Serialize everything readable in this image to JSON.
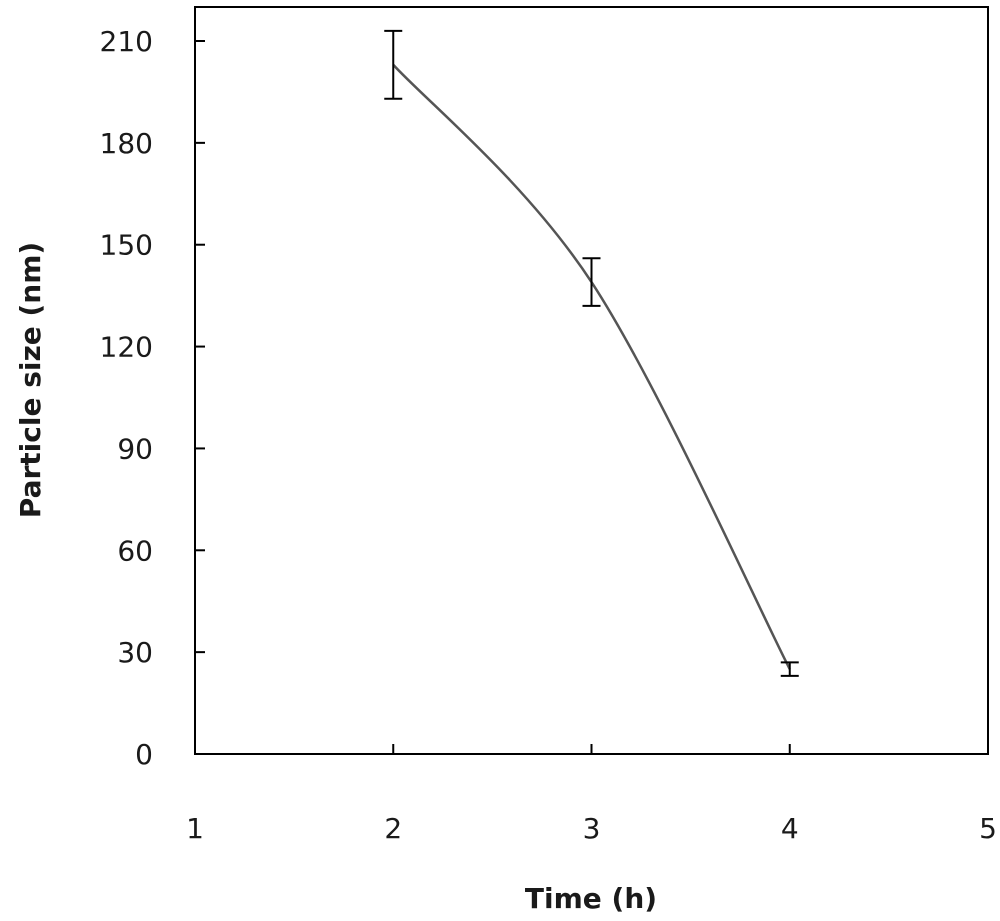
{
  "chart_data": {
    "type": "line",
    "title": "",
    "xlabel": "Time (h)",
    "ylabel": "Particle size (nm)",
    "xlim": [
      1,
      5
    ],
    "ylim": [
      0,
      210
    ],
    "xticks": [
      1,
      2,
      3,
      4,
      5
    ],
    "yticks": [
      0,
      30,
      60,
      90,
      120,
      150,
      180,
      210
    ],
    "grid": false,
    "smooth": true,
    "series": [
      {
        "x": [
          2,
          3,
          4
        ],
        "y": [
          203,
          139,
          25
        ],
        "error": [
          10,
          7,
          2
        ]
      }
    ],
    "colors": {
      "line": "#555555",
      "axis": "#000000",
      "errorbar": "#000000"
    }
  }
}
